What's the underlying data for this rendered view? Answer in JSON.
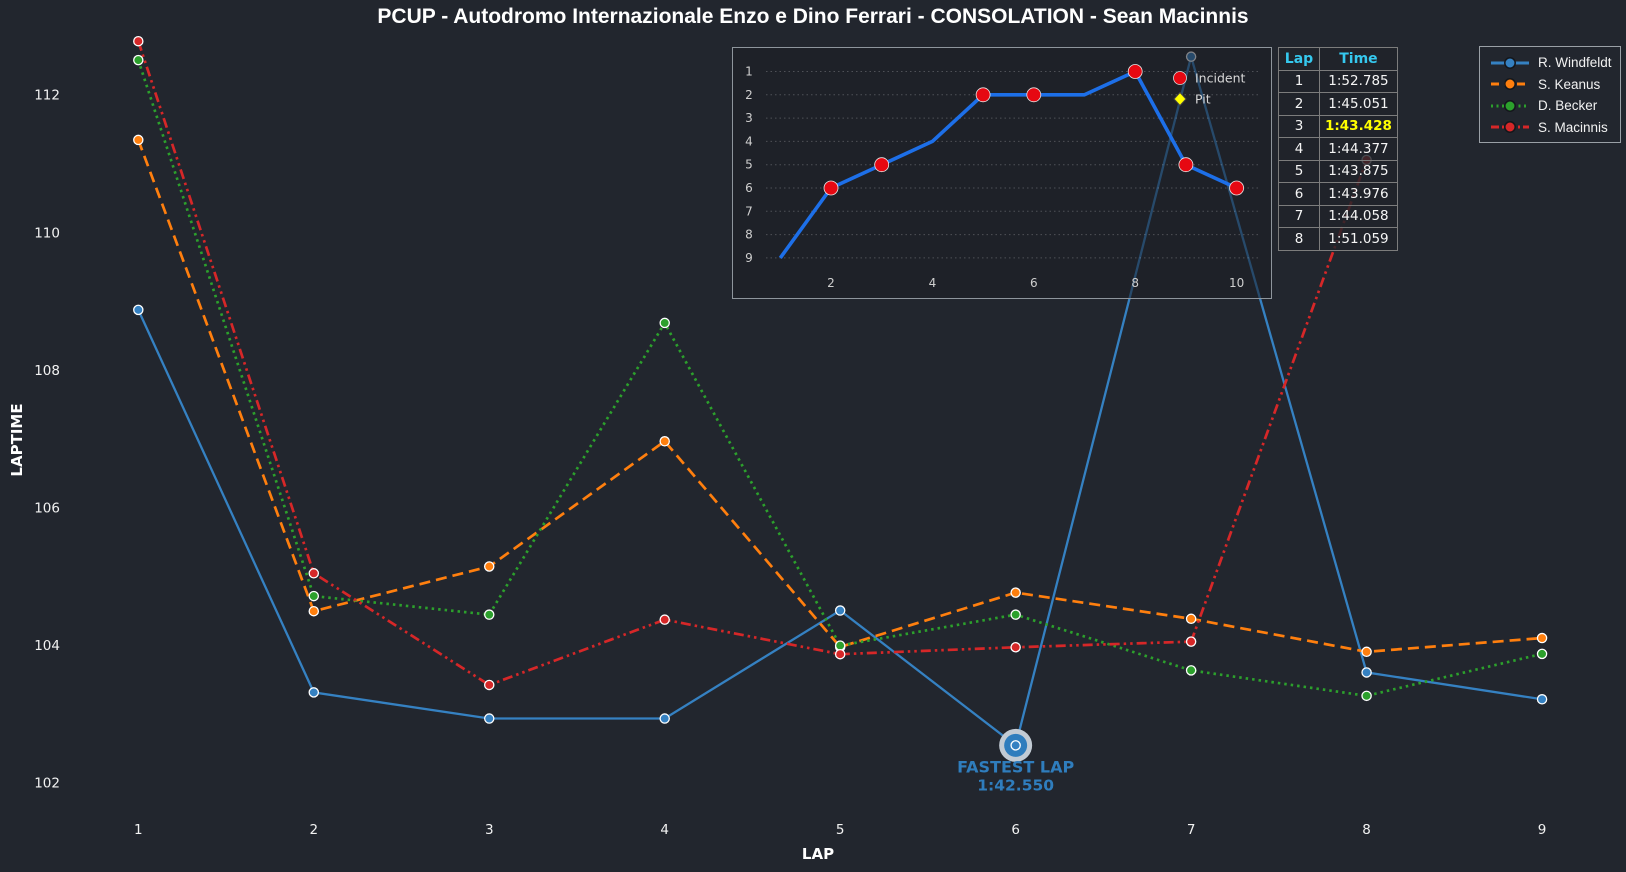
{
  "title": "PCUP - Autodromo Internazionale Enzo e Dino Ferrari - CONSOLATION - Sean Macinnis",
  "colors": {
    "background": "#22262e",
    "windfeldt_blue": "#3581c2",
    "keanus_orange": "#ff7f0e",
    "becker_green": "#2ca02c",
    "macinnis_red": "#d62728",
    "inset_line_blue": "#1d6fe8",
    "incident_red": "#e60812",
    "pit_yellow": "#ffff00",
    "table_header_cyan": "#35c8ee",
    "fastest_lap_text": "#2f7dbd",
    "tick_text": "#f2f2f2"
  },
  "chart_data": [
    {
      "type": "line",
      "title": "",
      "xlabel": "LAP",
      "ylabel": "LAPTIME",
      "x_ticks": [
        1,
        2,
        3,
        4,
        5,
        6,
        7,
        8,
        9
      ],
      "y_ticks": [
        102,
        104,
        106,
        108,
        110,
        112
      ],
      "xlim": [
        0.67,
        9.35
      ],
      "ylim": [
        101.7,
        113.0
      ],
      "grid": false,
      "legend_position": "upper right",
      "series": [
        {
          "name": "R. Windfeldt",
          "color": "#3581c2",
          "linestyle": "solid",
          "values": [
            108.88,
            103.32,
            102.94,
            102.94,
            104.51,
            102.55,
            112.56,
            103.61,
            103.22
          ]
        },
        {
          "name": "S. Keanus",
          "color": "#ff7f0e",
          "linestyle": "dashed",
          "values": [
            111.35,
            104.5,
            105.15,
            106.97,
            103.98,
            104.77,
            104.39,
            103.91,
            104.11
          ]
        },
        {
          "name": "D. Becker",
          "color": "#2ca02c",
          "linestyle": "dotted",
          "values": [
            112.51,
            104.72,
            104.45,
            108.69,
            104.0,
            104.45,
            103.64,
            103.27,
            103.88
          ]
        },
        {
          "name": "S. Macinnis",
          "color": "#d62728",
          "linestyle": "dashdot",
          "values": [
            112.785,
            105.051,
            103.428,
            104.377,
            103.875,
            103.976,
            104.058,
            111.059
          ]
        }
      ],
      "annotation": {
        "text": "FASTEST LAP",
        "time": "1:42.550",
        "series": "R. Windfeldt",
        "lap": 6,
        "value": 102.55
      }
    },
    {
      "type": "line",
      "description": "race position by lap (inset)",
      "x_ticks": [
        2,
        4,
        6,
        8,
        10
      ],
      "y_ticks": [
        1,
        2,
        3,
        4,
        5,
        6,
        7,
        8,
        9
      ],
      "y_axis_inverted": true,
      "grid": true,
      "series": [
        {
          "name": "position",
          "color": "#1d6fe8",
          "x": [
            1,
            2,
            3,
            4,
            5,
            6,
            7,
            8,
            9,
            10
          ],
          "values": [
            9,
            6,
            5,
            4,
            2,
            2,
            2,
            1,
            5,
            6
          ]
        }
      ],
      "incident_laps": [
        2,
        3,
        5,
        6,
        8,
        9,
        10
      ],
      "pit_laps": [],
      "legend": [
        {
          "label": "Incident",
          "marker": "circle",
          "color": "#e60812"
        },
        {
          "label": "Pit",
          "marker": "diamond",
          "color": "#ffff00"
        }
      ]
    }
  ],
  "lap_table": {
    "headers": [
      "Lap",
      "Time"
    ],
    "rows": [
      [
        "1",
        "1:52.785"
      ],
      [
        "2",
        "1:45.051"
      ],
      [
        "3",
        "1:43.428"
      ],
      [
        "4",
        "1:44.377"
      ],
      [
        "5",
        "1:43.875"
      ],
      [
        "6",
        "1:43.976"
      ],
      [
        "7",
        "1:44.058"
      ],
      [
        "8",
        "1:51.059"
      ]
    ],
    "fastest_row_index": 2
  },
  "legend": {
    "entries": [
      "R. Windfeldt",
      "S. Keanus",
      "D. Becker",
      "S. Macinnis"
    ]
  }
}
